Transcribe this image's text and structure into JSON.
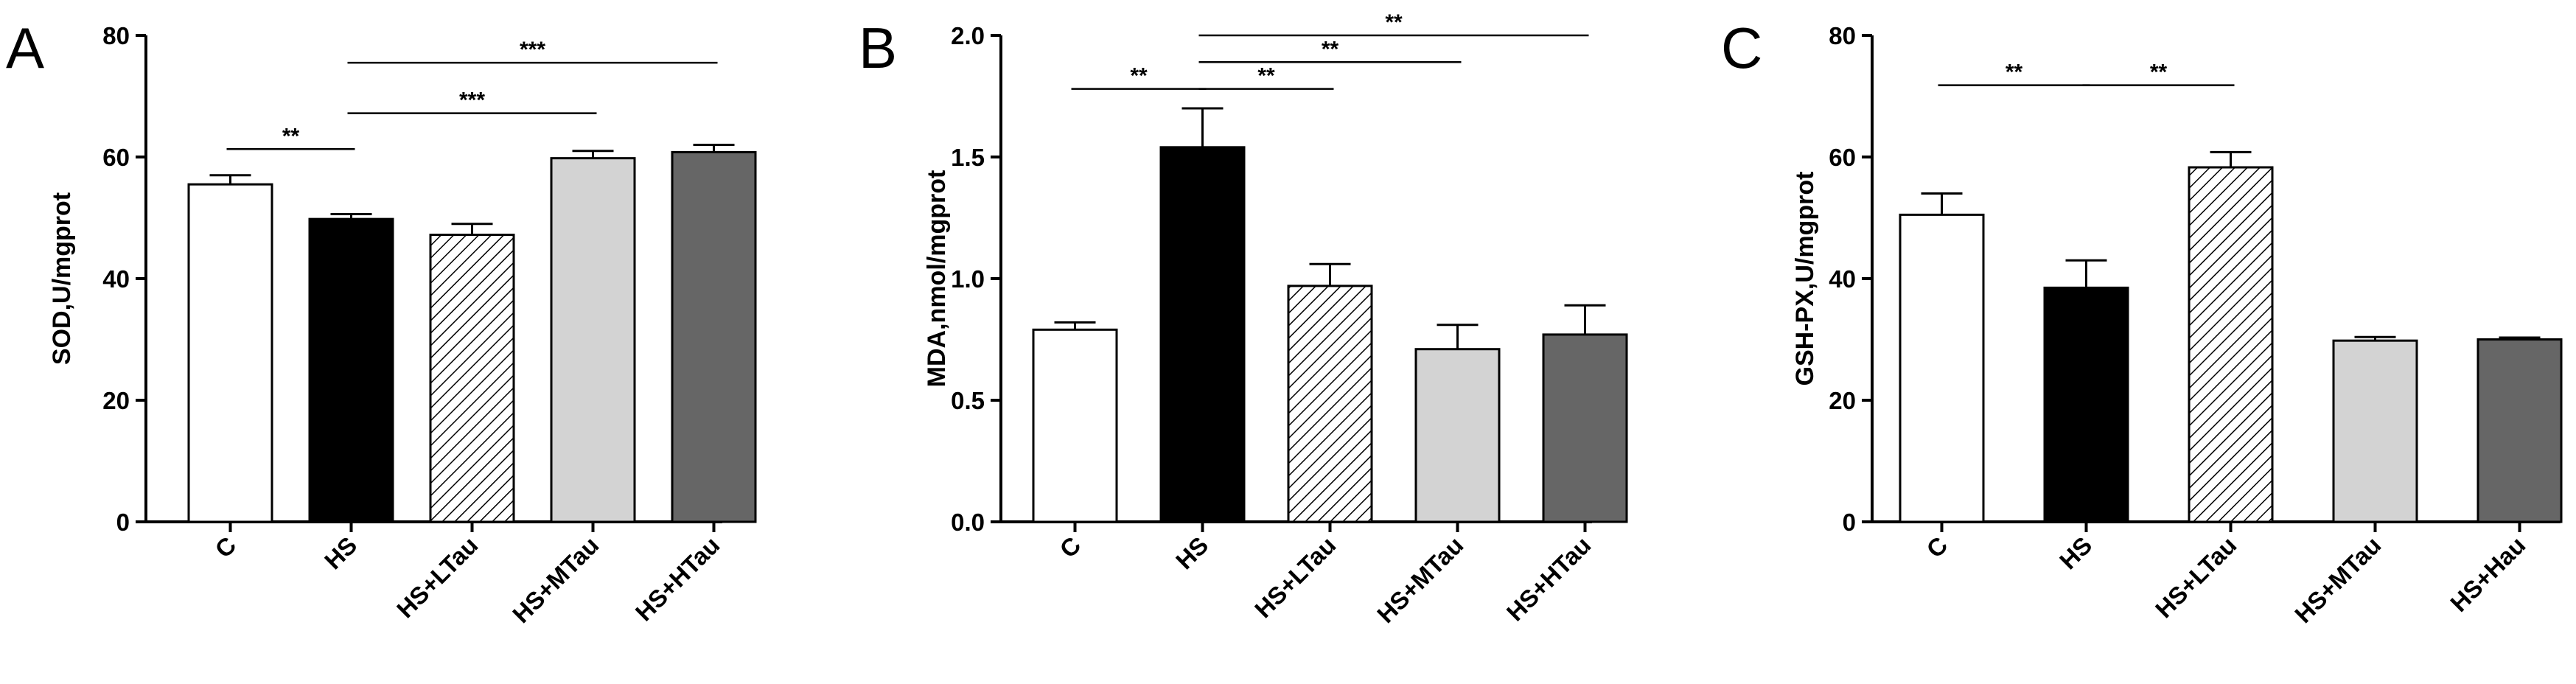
{
  "chart_data": [
    {
      "panel": "A",
      "type": "bar",
      "ylabel": "SOD,U/mgprot",
      "ylim": [
        0,
        80
      ],
      "yticks": [
        "0",
        "20",
        "40",
        "60",
        "80"
      ],
      "categories": [
        "C",
        "HS",
        "HS+LTau",
        "HS+MTau",
        "HS+HTau"
      ],
      "values": [
        55.5,
        49.8,
        47.2,
        59.8,
        60.8
      ],
      "errors": [
        1.5,
        0.8,
        1.8,
        1.2,
        1.2
      ],
      "fills": [
        "white",
        "black",
        "hatch",
        "#d3d3d3",
        "#666666"
      ],
      "significance": [
        {
          "from": 0,
          "to": 1,
          "label": "**",
          "y": 61.3
        },
        {
          "from": 1,
          "to": 3,
          "label": "***",
          "y": 67.2
        },
        {
          "from": 1,
          "to": 4,
          "label": "***",
          "y": 75.5
        }
      ]
    },
    {
      "panel": "B",
      "type": "bar",
      "ylabel": "MDA,nmol/mgprot",
      "ylim": [
        0,
        2.0
      ],
      "yticks": [
        "0.0",
        "0.5",
        "1.0",
        "1.5",
        "2.0"
      ],
      "categories": [
        "C",
        "HS",
        "HS+LTau",
        "HS+MTau",
        "HS+HTau"
      ],
      "values": [
        0.79,
        1.54,
        0.97,
        0.71,
        0.77
      ],
      "errors": [
        0.03,
        0.16,
        0.09,
        0.1,
        0.12
      ],
      "fills": [
        "white",
        "black",
        "hatch",
        "#d3d3d3",
        "#666666"
      ],
      "significance": [
        {
          "from": 0,
          "to": 1,
          "label": "**",
          "y": 1.78
        },
        {
          "from": 1,
          "to": 2,
          "label": "**",
          "y": 1.78
        },
        {
          "from": 1,
          "to": 3,
          "label": "**",
          "y": 1.89
        },
        {
          "from": 1,
          "to": 4,
          "label": "**",
          "y": 2.0
        }
      ]
    },
    {
      "panel": "C",
      "type": "bar",
      "ylabel": "GSH-PX,U/mgprot",
      "ylim": [
        0,
        80
      ],
      "yticks": [
        "0",
        "20",
        "40",
        "60",
        "80"
      ],
      "categories": [
        "C",
        "HS",
        "HS+LTau",
        "HS+MTau",
        "HS+Hau"
      ],
      "values": [
        50.5,
        38.5,
        58.3,
        29.8,
        30.0
      ],
      "errors": [
        3.5,
        4.5,
        2.5,
        0.6,
        0.3
      ],
      "fills": [
        "white",
        "black",
        "hatch",
        "#d3d3d3",
        "#666666"
      ],
      "significance": [
        {
          "from": 0,
          "to": 1,
          "label": "**",
          "y": 71.8
        },
        {
          "from": 1,
          "to": 2,
          "label": "**",
          "y": 71.8
        }
      ]
    }
  ]
}
